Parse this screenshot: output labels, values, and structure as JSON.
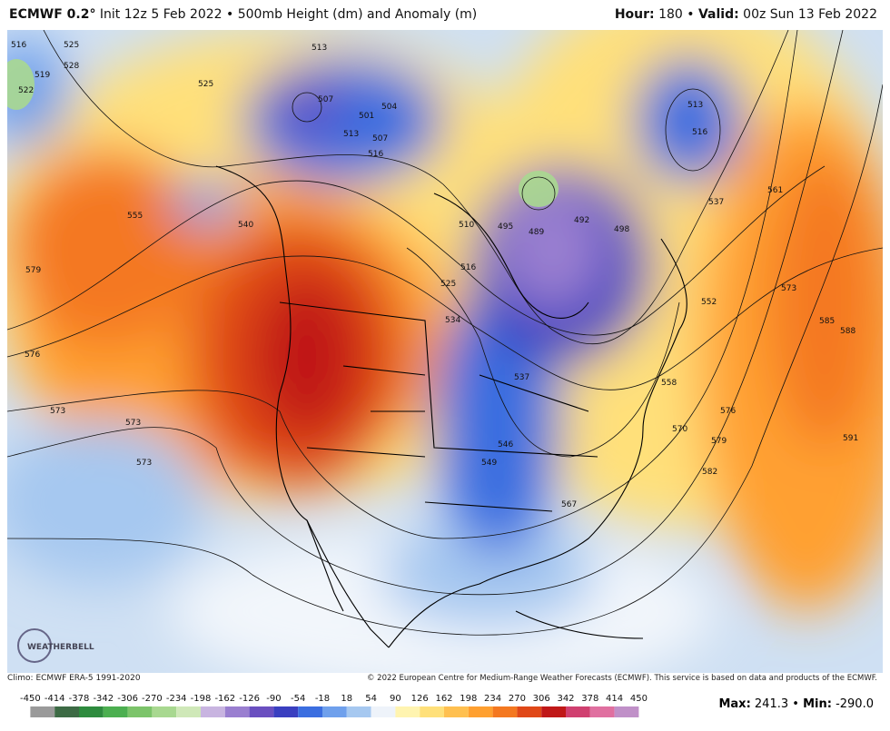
{
  "header": {
    "model": "ECMWF 0.2°",
    "run": "Init 12z 5 Feb 2022 • 500mb Height (dm) and Anomaly (m)",
    "hour_label": "Hour:",
    "hour": "180 •",
    "valid_label": "Valid:",
    "valid": "00z Sun 13 Feb 2022"
  },
  "map": {
    "logo": "WEATHERBELL",
    "contour_labels": [
      516,
      525,
      528,
      519,
      522,
      525,
      513,
      507,
      501,
      504,
      507,
      513,
      516,
      540,
      555,
      579,
      576,
      573,
      573,
      573,
      510,
      516,
      525,
      534,
      495,
      489,
      492,
      498,
      537,
      546,
      549,
      567,
      558,
      570,
      576,
      579,
      582,
      552,
      537,
      561,
      573,
      585,
      588,
      591,
      513,
      516
    ]
  },
  "footer": {
    "climo": "Climo: ECMWF ERA-5 1991-2020",
    "copyright": "© 2022 European Centre for Medium-Range Weather Forecasts (ECMWF). This service is based on data and products of the ECMWF.",
    "max_label": "Max:",
    "max": "241.3 •",
    "min_label": "Min:",
    "min": "-290.0"
  },
  "colorbar": {
    "ticks": [
      -450,
      -414,
      -378,
      -342,
      -306,
      -270,
      -234,
      -198,
      -162,
      -126,
      -90,
      -54,
      -18,
      18,
      54,
      90,
      126,
      162,
      198,
      234,
      270,
      306,
      342,
      378,
      414,
      450
    ],
    "colors": [
      "#9a9a9a",
      "#3d6b45",
      "#2e8b3e",
      "#4caf50",
      "#7cc46a",
      "#a8d890",
      "#cfe8b8",
      "#c8b4e0",
      "#9a7fd0",
      "#6a4fc0",
      "#3a3fc0",
      "#3b6ee0",
      "#6fa0ec",
      "#a6c8f0",
      "#eef3fa",
      "#fff4b0",
      "#ffe07a",
      "#ffc050",
      "#ffa030",
      "#f47820",
      "#e04818",
      "#c01818",
      "#d04070",
      "#e070a0",
      "#c090c8"
    ]
  }
}
